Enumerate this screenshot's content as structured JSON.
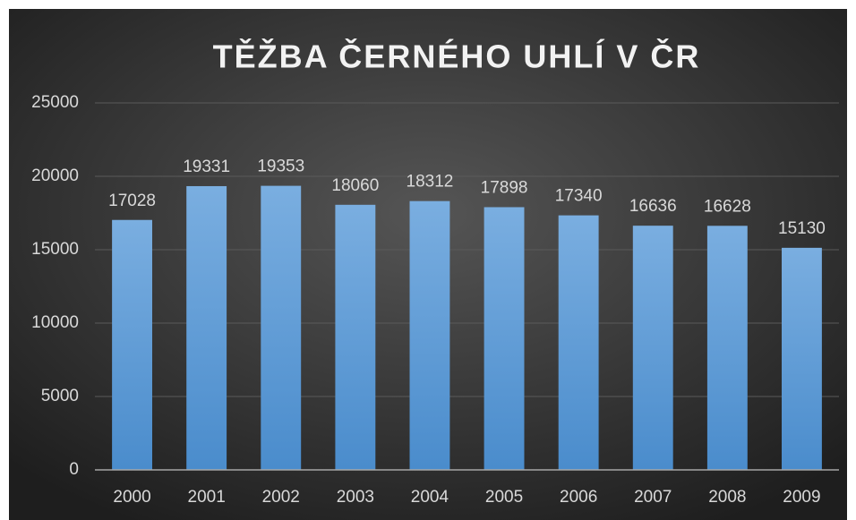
{
  "chart_data": {
    "type": "bar",
    "title": "TĚŽBA ČERNÉHO UHLÍ V ČR",
    "categories": [
      "2000",
      "2001",
      "2002",
      "2003",
      "2004",
      "2005",
      "2006",
      "2007",
      "2008",
      "2009"
    ],
    "values": [
      17028,
      19331,
      19353,
      18060,
      18312,
      17898,
      17340,
      16636,
      16628,
      15130
    ],
    "color": "#5b9bd5",
    "ylim": [
      0,
      25000
    ],
    "yticks": [
      0,
      5000,
      10000,
      15000,
      20000,
      25000
    ],
    "grid": true,
    "data_labels": true
  }
}
